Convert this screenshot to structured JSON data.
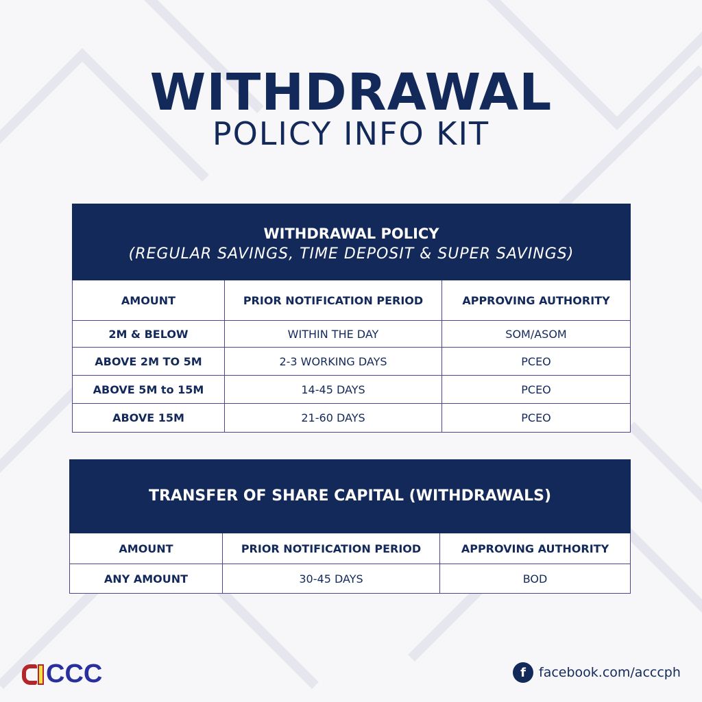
{
  "title": "WITHDRAWAL",
  "subtitle": "POLICY INFO KIT",
  "colors": {
    "navy": "#13295a",
    "border": "#4d4590",
    "logo_red": "#b3262a",
    "logo_yellow": "#f2e046",
    "logo_blue": "#2a2fa0"
  },
  "table1": {
    "title": "WITHDRAWAL POLICY",
    "subtitle": "(REGULAR SAVINGS, TIME DEPOSIT & SUPER SAVINGS)",
    "headers": [
      "AMOUNT",
      "PRIOR NOTIFICATION PERIOD",
      "APPROVING AUTHORITY"
    ],
    "rows": [
      [
        "2M & BELOW",
        "WITHIN THE DAY",
        "SOM/ASOM"
      ],
      [
        "ABOVE 2M TO 5M",
        "2-3 WORKING DAYS",
        "PCEO"
      ],
      [
        "ABOVE 5M to 15M",
        "14-45 DAYS",
        "PCEO"
      ],
      [
        "ABOVE 15M",
        "21-60 DAYS",
        "PCEO"
      ]
    ]
  },
  "table2": {
    "title": "TRANSFER OF SHARE CAPITAL (WITHDRAWALS)",
    "headers": [
      "AMOUNT",
      "PRIOR NOTIFICATION PERIOD",
      "APPROVING AUTHORITY"
    ],
    "rows": [
      [
        "ANY AMOUNT",
        "30-45 DAYS",
        "BOD"
      ]
    ]
  },
  "logo": {
    "text": "ACCC"
  },
  "social": {
    "icon": "facebook-icon",
    "icon_glyph": "f",
    "text": "facebook.com/acccph"
  }
}
